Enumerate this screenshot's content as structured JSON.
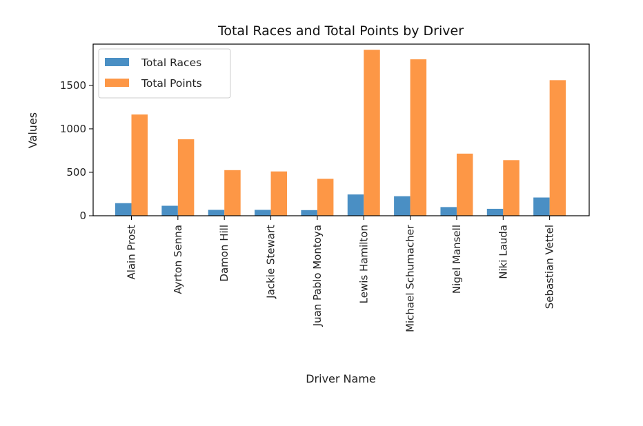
{
  "chart_data": {
    "type": "bar",
    "title": "Total Races and Total Points by Driver",
    "xlabel": "Driver Name",
    "ylabel": "Values",
    "categories": [
      "Alain Prost",
      "Ayrton Senna",
      "Damon Hill",
      "Jackie Stewart",
      "Juan Pablo Montoya",
      "Lewis Hamilton",
      "Michael Schumacher",
      "Nigel Mansell",
      "Niki Lauda",
      "Sebastian Vettel"
    ],
    "series": [
      {
        "name": "Total Races",
        "color": "#4a8fc4",
        "values": [
          145,
          115,
          68,
          68,
          65,
          245,
          225,
          100,
          80,
          210
        ]
      },
      {
        "name": "Total Points",
        "color": "#fd9746",
        "values": [
          1165,
          880,
          525,
          510,
          425,
          1910,
          1800,
          715,
          640,
          1560
        ]
      }
    ],
    "ylim": [
      0,
      1975
    ],
    "yticks": [
      0,
      500,
      1000,
      1500
    ],
    "legend_position": "top-left",
    "grid": false
  }
}
